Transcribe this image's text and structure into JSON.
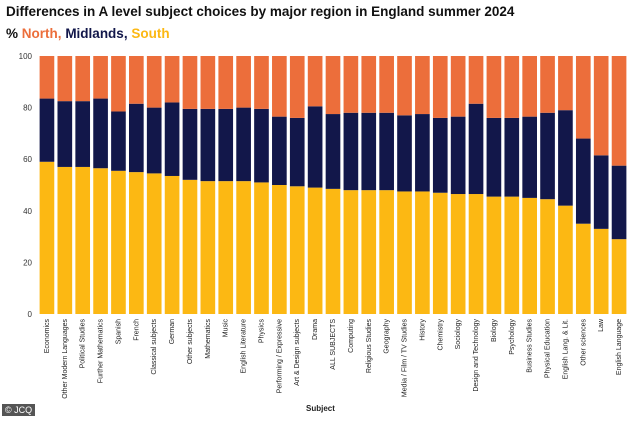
{
  "chart_data": {
    "type": "bar",
    "stacked": true,
    "title": "Differences in A level subject choices by major region in England summer 2024",
    "legend_prefix": "%",
    "xlabel": "Subject",
    "ylabel": "",
    "ylim": [
      0,
      100
    ],
    "yticks": [
      0,
      20,
      40,
      60,
      80,
      100
    ],
    "grid": false,
    "legend_position": "top-left",
    "categories": [
      "Economics",
      "Other Modern Languages",
      "Political Studies",
      "Further Mathematics",
      "Spanish",
      "French",
      "Classical subjects",
      "German",
      "Other subjects",
      "Mathematics",
      "Music",
      "English Literature",
      "Physics",
      "Performing / Expressive",
      "Art & Design subjects",
      "Drama",
      "ALL SUBJECTS",
      "Computing",
      "Religious Studies",
      "Geography",
      "Media / Film / TV Studies",
      "History",
      "Chemistry",
      "Sociology",
      "Design and Technology",
      "Biology",
      "Psychology",
      "Business Studies",
      "Physical Education",
      "English Lang. & Lit.",
      "Other sciences",
      "Law",
      "English Language"
    ],
    "series": [
      {
        "name": "South",
        "color": "#FCB813",
        "values": [
          59,
          57,
          57,
          56.5,
          55.5,
          55,
          54.5,
          53.5,
          52,
          51.5,
          51.5,
          51.5,
          51,
          50,
          49.5,
          49,
          48.5,
          48,
          48,
          48,
          47.5,
          47.5,
          47,
          46.5,
          46.5,
          45.5,
          45.5,
          45,
          44.5,
          42,
          35,
          33,
          29
        ]
      },
      {
        "name": "Midlands",
        "color": "#12174A",
        "values": [
          24.5,
          25.5,
          25.5,
          27,
          23,
          26.5,
          25.5,
          28.5,
          27.5,
          28,
          28,
          28.5,
          28.5,
          26.5,
          26.5,
          31.5,
          29,
          30,
          30,
          30,
          29.5,
          30,
          29,
          30,
          35,
          30.5,
          30.5,
          31.5,
          33.5,
          37,
          33,
          28.5,
          28.5
        ]
      },
      {
        "name": "North",
        "color": "#EC6E3B",
        "values": [
          16.5,
          17.5,
          17.5,
          16.5,
          21.5,
          18.5,
          20,
          18,
          20.5,
          20.5,
          20.5,
          20,
          20.5,
          23.5,
          24,
          19.5,
          22.5,
          22,
          22,
          22,
          23,
          22.5,
          24,
          23.5,
          18.5,
          24,
          24,
          23.5,
          22,
          21,
          32,
          38.5,
          42.5
        ]
      }
    ]
  },
  "credit": "© JCQ"
}
